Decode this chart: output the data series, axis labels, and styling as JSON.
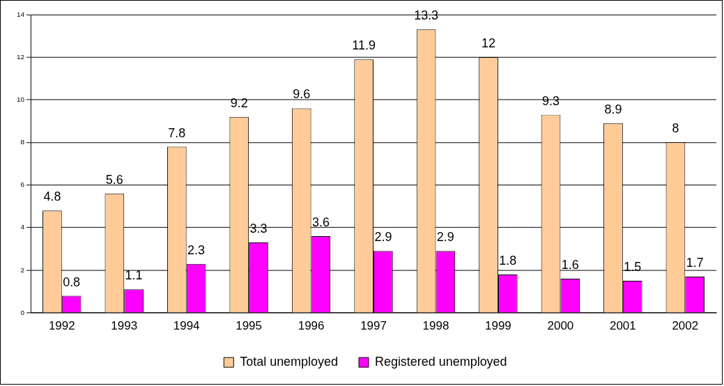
{
  "chart_data": {
    "type": "bar",
    "categories": [
      "1992",
      "1993",
      "1994",
      "1995",
      "1996",
      "1997",
      "1998",
      "1999",
      "2000",
      "2001",
      "2002"
    ],
    "series": [
      {
        "name": "Total unemployed",
        "color": "#ffcc99",
        "values": [
          4.8,
          5.6,
          7.8,
          9.2,
          9.6,
          11.9,
          13.3,
          12,
          9.3,
          8.9,
          8
        ]
      },
      {
        "name": "Registered unemployed",
        "color": "#ff00ff",
        "values": [
          0.8,
          1.1,
          2.3,
          3.3,
          3.6,
          2.9,
          2.9,
          1.8,
          1.6,
          1.5,
          1.7
        ]
      }
    ],
    "ylim": [
      0,
      14
    ],
    "yticks": [
      0,
      2,
      4,
      6,
      8,
      10,
      12,
      14
    ],
    "grid": "y",
    "legend": "bottom",
    "data_labels": true
  }
}
